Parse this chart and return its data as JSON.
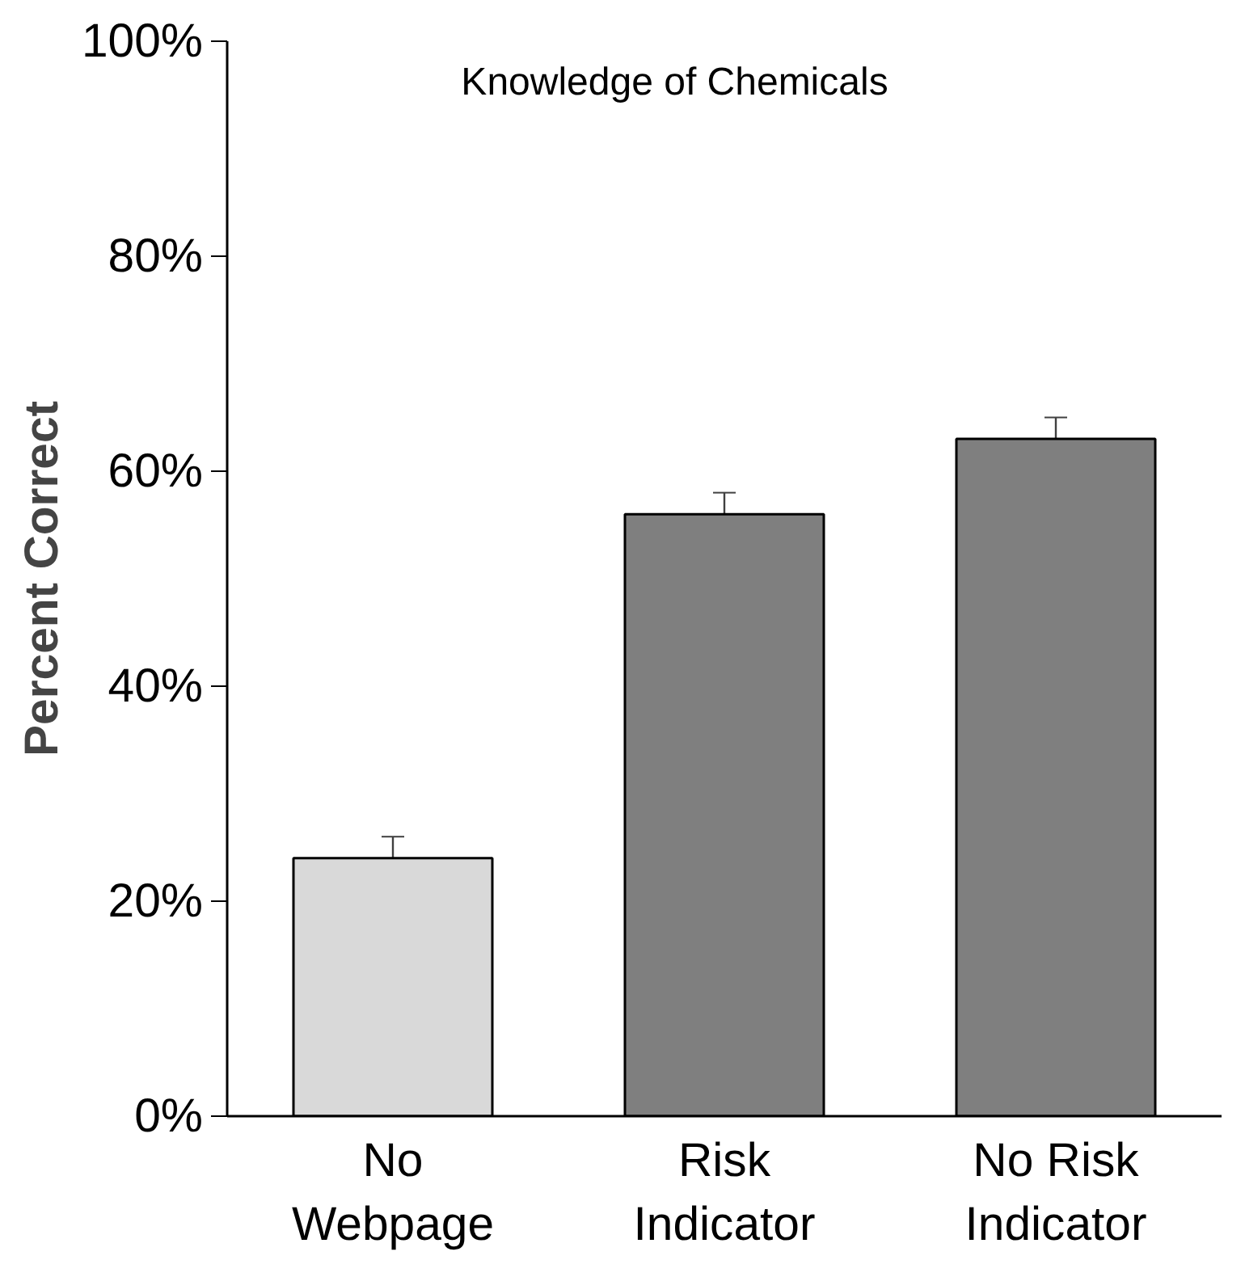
{
  "chart_data": {
    "type": "bar",
    "title": "Knowledge of Chemicals",
    "ylabel": "Percent Correct",
    "categories": [
      "No\nWebpage",
      "Risk\nIndicator",
      "No Risk\nIndicator"
    ],
    "values": [
      24,
      56,
      63
    ],
    "colors": [
      "#d9d9d9",
      "#7f7f7f",
      "#7f7f7f"
    ],
    "errors": [
      2,
      2,
      2
    ],
    "ylim": [
      0,
      100
    ],
    "yticks": [
      {
        "value": 0,
        "label": "0%"
      },
      {
        "value": 20,
        "label": "20%"
      },
      {
        "value": 40,
        "label": "40%"
      },
      {
        "value": 60,
        "label": "60%"
      },
      {
        "value": 80,
        "label": "80%"
      },
      {
        "value": 100,
        "label": "100%"
      }
    ],
    "grid": false
  }
}
